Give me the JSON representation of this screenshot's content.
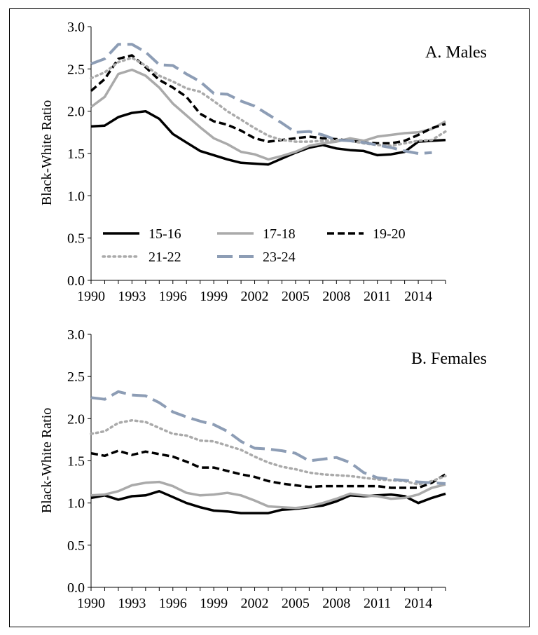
{
  "chart_data": [
    {
      "type": "line",
      "title": "A. Males",
      "xlabel": "",
      "ylabel": "Black-White Ratio",
      "ylim": [
        0,
        3
      ],
      "xlim": [
        1990,
        2016
      ],
      "yticks": [
        "0.0",
        "0.5",
        "1.0",
        "1.5",
        "2.0",
        "2.5",
        "3.0"
      ],
      "xticks": [
        "1990",
        "1993",
        "1996",
        "1999",
        "2002",
        "2005",
        "2008",
        "2011",
        "2014"
      ],
      "legend": "inside bottom-left",
      "grid": false,
      "x": [
        1990,
        1991,
        1992,
        1993,
        1994,
        1995,
        1996,
        1997,
        1998,
        1999,
        2000,
        2001,
        2002,
        2003,
        2004,
        2005,
        2006,
        2007,
        2008,
        2009,
        2010,
        2011,
        2012,
        2013,
        2014,
        2015,
        2016
      ],
      "series": [
        {
          "name": "15-16",
          "color": "#000000",
          "dash": "solid",
          "values": [
            1.82,
            1.83,
            1.93,
            1.98,
            2.0,
            1.91,
            1.73,
            1.63,
            1.53,
            1.48,
            1.43,
            1.39,
            1.38,
            1.37,
            1.44,
            1.51,
            1.57,
            1.6,
            1.56,
            1.54,
            1.53,
            1.48,
            1.49,
            1.52,
            1.64,
            1.65,
            1.66
          ]
        },
        {
          "name": "17-18",
          "color": "#aaaaaa",
          "dash": "solid",
          "values": [
            2.05,
            2.17,
            2.44,
            2.49,
            2.42,
            2.28,
            2.09,
            1.95,
            1.81,
            1.68,
            1.61,
            1.52,
            1.49,
            1.43,
            1.47,
            1.52,
            1.59,
            1.62,
            1.64,
            1.68,
            1.65,
            1.7,
            1.72,
            1.74,
            1.75,
            1.79,
            1.88
          ]
        },
        {
          "name": "19-20",
          "color": "#000000",
          "dash": "dash",
          "values": [
            2.24,
            2.38,
            2.62,
            2.66,
            2.52,
            2.37,
            2.28,
            2.17,
            1.97,
            1.88,
            1.84,
            1.77,
            1.68,
            1.64,
            1.66,
            1.68,
            1.7,
            1.68,
            1.67,
            1.65,
            1.63,
            1.62,
            1.62,
            1.65,
            1.72,
            1.8,
            1.85
          ]
        },
        {
          "name": "21-22",
          "color": "#aaaaaa",
          "dash": "dot",
          "values": [
            2.39,
            2.46,
            2.58,
            2.63,
            2.54,
            2.42,
            2.35,
            2.27,
            2.23,
            2.12,
            2.0,
            1.9,
            1.8,
            1.71,
            1.66,
            1.64,
            1.64,
            1.65,
            1.66,
            1.65,
            1.62,
            1.6,
            1.59,
            1.62,
            1.65,
            1.66,
            1.76
          ]
        },
        {
          "name": "23-24",
          "color": "#8d9db5",
          "dash": "longdash",
          "values": [
            2.56,
            2.62,
            2.79,
            2.79,
            2.7,
            2.55,
            2.54,
            2.44,
            2.35,
            2.21,
            2.2,
            2.12,
            2.06,
            1.96,
            1.86,
            1.75,
            1.76,
            1.72,
            1.66,
            1.65,
            1.63,
            1.6,
            1.57,
            1.53,
            1.5,
            1.51,
            null
          ]
        }
      ]
    },
    {
      "type": "line",
      "title": "B. Females",
      "xlabel": "",
      "ylabel": "Black-White Ratio",
      "ylim": [
        0,
        3
      ],
      "xlim": [
        1990,
        2016
      ],
      "yticks": [
        "0.0",
        "0.5",
        "1.0",
        "1.5",
        "2.0",
        "2.5",
        "3.0"
      ],
      "xticks": [
        "1990",
        "1993",
        "1996",
        "1999",
        "2002",
        "2005",
        "2008",
        "2011",
        "2014"
      ],
      "grid": false,
      "x": [
        1990,
        1991,
        1992,
        1993,
        1994,
        1995,
        1996,
        1997,
        1998,
        1999,
        2000,
        2001,
        2002,
        2003,
        2004,
        2005,
        2006,
        2007,
        2008,
        2009,
        2010,
        2011,
        2012,
        2013,
        2014,
        2015,
        2016
      ],
      "series": [
        {
          "name": "15-16",
          "color": "#000000",
          "dash": "solid",
          "values": [
            1.06,
            1.09,
            1.04,
            1.08,
            1.09,
            1.14,
            1.07,
            1.0,
            0.95,
            0.91,
            0.9,
            0.88,
            0.88,
            0.88,
            0.92,
            0.93,
            0.95,
            0.97,
            1.02,
            1.09,
            1.08,
            1.09,
            1.1,
            1.08,
            1.0,
            1.06,
            1.11
          ]
        },
        {
          "name": "17-18",
          "color": "#aaaaaa",
          "dash": "solid",
          "values": [
            1.09,
            1.1,
            1.14,
            1.21,
            1.24,
            1.25,
            1.2,
            1.12,
            1.09,
            1.1,
            1.12,
            1.09,
            1.03,
            0.96,
            0.95,
            0.94,
            0.96,
            1.0,
            1.05,
            1.11,
            1.09,
            1.08,
            1.05,
            1.06,
            1.1,
            1.18,
            1.22
          ]
        },
        {
          "name": "19-20",
          "color": "#000000",
          "dash": "dash",
          "values": [
            1.59,
            1.56,
            1.62,
            1.57,
            1.61,
            1.58,
            1.55,
            1.49,
            1.42,
            1.42,
            1.38,
            1.34,
            1.31,
            1.26,
            1.23,
            1.21,
            1.19,
            1.2,
            1.2,
            1.2,
            1.2,
            1.2,
            1.18,
            1.18,
            1.18,
            1.24,
            1.34
          ]
        },
        {
          "name": "21-22",
          "color": "#aaaaaa",
          "dash": "dot",
          "values": [
            1.82,
            1.85,
            1.95,
            1.98,
            1.96,
            1.89,
            1.82,
            1.8,
            1.74,
            1.73,
            1.68,
            1.63,
            1.55,
            1.48,
            1.43,
            1.4,
            1.36,
            1.34,
            1.33,
            1.32,
            1.3,
            1.28,
            1.27,
            1.26,
            1.22,
            1.26,
            1.32
          ]
        },
        {
          "name": "23-24",
          "color": "#8d9db5",
          "dash": "longdash",
          "values": [
            2.25,
            2.23,
            2.32,
            2.28,
            2.27,
            2.19,
            2.08,
            2.02,
            1.97,
            1.93,
            1.85,
            1.73,
            1.65,
            1.64,
            1.62,
            1.59,
            1.5,
            1.52,
            1.54,
            1.48,
            1.36,
            1.3,
            1.28,
            1.27,
            1.25,
            1.24,
            1.23
          ]
        }
      ]
    }
  ]
}
